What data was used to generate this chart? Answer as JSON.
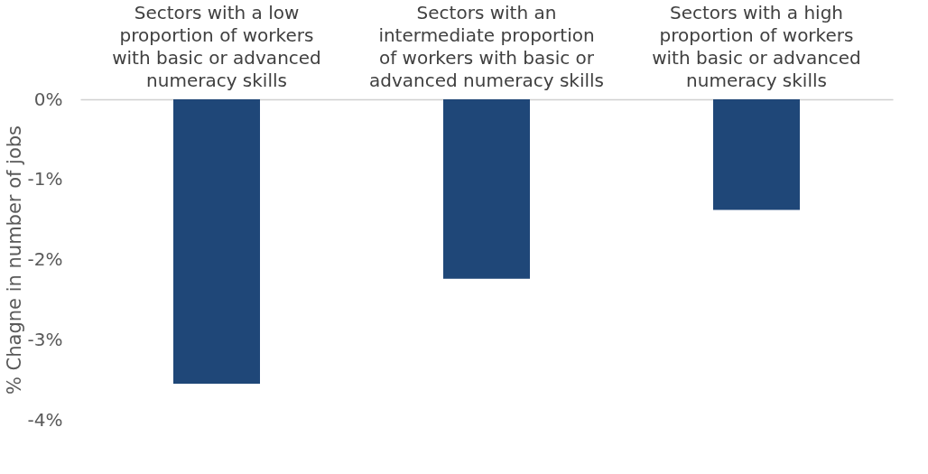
{
  "chart_data": {
    "type": "bar",
    "ylabel": "% Chagne in number of jobs",
    "categories": [
      "Sectors with a low proportion of workers with basic or advanced numeracy skills",
      "Sectors with an intermediate proportion of workers with basic or advanced numeracy skills",
      "Sectors with a high proportion of workers with basic or advanced numeracy skills"
    ],
    "values": [
      -3.55,
      -2.24,
      -1.38
    ],
    "color": "#1f4778",
    "ylim": [
      -4,
      0
    ],
    "yticks": [
      {
        "value": 0,
        "label": "0%"
      },
      {
        "value": -1,
        "label": "-1%"
      },
      {
        "value": -2,
        "label": "-2%"
      },
      {
        "value": -3,
        "label": "-3%"
      },
      {
        "value": -4,
        "label": "-4%"
      }
    ],
    "grid": false
  }
}
